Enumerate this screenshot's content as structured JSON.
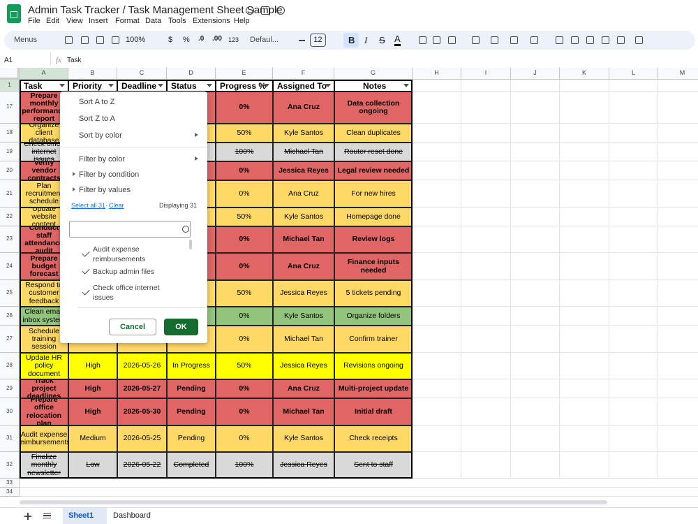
{
  "doc": {
    "title": "Admin Task Tracker / Task Management Sheet Sample",
    "menu": [
      "File",
      "Edit",
      "View",
      "Insert",
      "Format",
      "Data",
      "Tools",
      "Extensions",
      "Help"
    ]
  },
  "toolbar": {
    "search": "Menus",
    "zoom": "100%",
    "currency": "$",
    "percent": "%",
    "decrease_decimal": ".0",
    "increase_decimal": ".00",
    "number_format": "123",
    "font": "Defaul...",
    "font_size": "12",
    "bold": "B",
    "italic": "I",
    "strikethrough": "S",
    "text_color": "A"
  },
  "formula_bar": {
    "cell": "A1",
    "fx": "fx",
    "content": "Task"
  },
  "columns": [
    "A",
    "B",
    "C",
    "D",
    "E",
    "F",
    "G",
    "H",
    "I",
    "J",
    "K",
    "L",
    "M"
  ],
  "header_row": {
    "number": 1,
    "cells": [
      "Task",
      "Priority",
      "Deadline",
      "Status",
      "Progress %",
      "Assigned To",
      "Notes"
    ]
  },
  "rows": [
    {
      "number": 17,
      "color": "#e06666",
      "bold": true,
      "strike": false,
      "cells": [
        "Prepare monthly performance report",
        null,
        null,
        null,
        "0%",
        "Ana Cruz",
        "Data collection ongoing"
      ]
    },
    {
      "number": 18,
      "color": "#ffd966",
      "bold": false,
      "strike": false,
      "cells": [
        "Organize client database",
        null,
        null,
        null,
        "50%",
        "Kyle Santos",
        "Clean duplicates"
      ]
    },
    {
      "number": 19,
      "color": "#d9d9d9",
      "bold": false,
      "strike": true,
      "cells": [
        "Check office internet issues",
        null,
        null,
        null,
        "100%",
        "Michael Tan",
        "Router reset done"
      ]
    },
    {
      "number": 20,
      "color": "#e06666",
      "bold": true,
      "strike": false,
      "cells": [
        "Verify vendor contracts",
        null,
        null,
        null,
        "0%",
        "Jessica Reyes",
        "Legal review needed"
      ]
    },
    {
      "number": 21,
      "color": "#ffd966",
      "bold": false,
      "strike": false,
      "cells": [
        "Plan recruitment schedule",
        null,
        null,
        null,
        "0%",
        "Ana Cruz",
        "For new hires"
      ]
    },
    {
      "number": 22,
      "color": "#ffd966",
      "bold": false,
      "strike": false,
      "cells": [
        "Update website content",
        null,
        null,
        null,
        "50%",
        "Kyle Santos",
        "Homepage done"
      ]
    },
    {
      "number": 23,
      "color": "#e06666",
      "bold": true,
      "strike": false,
      "cells": [
        "Conduct staff attendance audit",
        null,
        null,
        null,
        "0%",
        "Michael Tan",
        "Review logs"
      ]
    },
    {
      "number": 24,
      "color": "#e06666",
      "bold": true,
      "strike": false,
      "cells": [
        "Prepare budget forecast",
        null,
        null,
        null,
        "0%",
        "Ana Cruz",
        "Finance inputs needed"
      ]
    },
    {
      "number": 25,
      "color": "#ffd966",
      "bold": false,
      "strike": false,
      "cells": [
        "Respond to customer feedback",
        null,
        null,
        null,
        "50%",
        "Jessica Reyes",
        "5 tickets pending"
      ]
    },
    {
      "number": 26,
      "color": "#93c47d",
      "bold": false,
      "strike": false,
      "cells": [
        "Clean email inbox system",
        null,
        null,
        null,
        "0%",
        "Kyle Santos",
        "Organize folders"
      ]
    },
    {
      "number": 27,
      "color": "#ffd966",
      "bold": false,
      "strike": false,
      "cells": [
        "Schedule training session",
        null,
        null,
        null,
        "0%",
        "Michael Tan",
        "Confirm trainer"
      ]
    },
    {
      "number": 28,
      "color": "#ffff00",
      "bold": false,
      "strike": false,
      "cells": [
        "Update HR policy document",
        "High",
        "2026-05-26",
        "In Progress",
        "50%",
        "Jessica Reyes",
        "Revisions ongoing"
      ]
    },
    {
      "number": 29,
      "color": "#e06666",
      "bold": true,
      "strike": false,
      "cells": [
        "Track project deadlines",
        "High",
        "2026-05-27",
        "Pending",
        "0%",
        "Ana Cruz",
        "Multi-project update"
      ]
    },
    {
      "number": 30,
      "color": "#e06666",
      "bold": true,
      "strike": false,
      "cells": [
        "Prepare office relocation plan",
        "High",
        "2026-05-30",
        "Pending",
        "0%",
        "Michael Tan",
        "Initial draft"
      ]
    },
    {
      "number": 31,
      "color": "#ffd966",
      "bold": false,
      "strike": false,
      "cells": [
        "Audit expense reimbursements",
        "Medium",
        "2026-05-25",
        "Pending",
        "0%",
        "Kyle Santos",
        "Check receipts"
      ]
    },
    {
      "number": 32,
      "color": "#d9d9d9",
      "bold": false,
      "strike": true,
      "cells": [
        "Finalize monthly newsletter",
        "Low",
        "2026-05-22",
        "Completed",
        "100%",
        "Jessica Reyes",
        "Sent to staff"
      ]
    }
  ],
  "empty_rows": [
    33,
    34
  ],
  "filter_menu": {
    "sort_az": "Sort A to Z",
    "sort_za": "Sort Z to A",
    "sort_color": "Sort by color",
    "filter_color": "Filter by color",
    "filter_condition": "Filter by condition",
    "filter_values": "Filter by values",
    "select_all": "Select all 31",
    "separator": "·",
    "clear": "Clear",
    "displaying": "Displaying 31",
    "values": [
      "Audit expense reimbursements",
      "Backup admin files",
      "Check office internet issues"
    ],
    "cancel": "Cancel",
    "ok": "OK"
  },
  "tabs": [
    "Sheet1",
    "Dashboard"
  ]
}
